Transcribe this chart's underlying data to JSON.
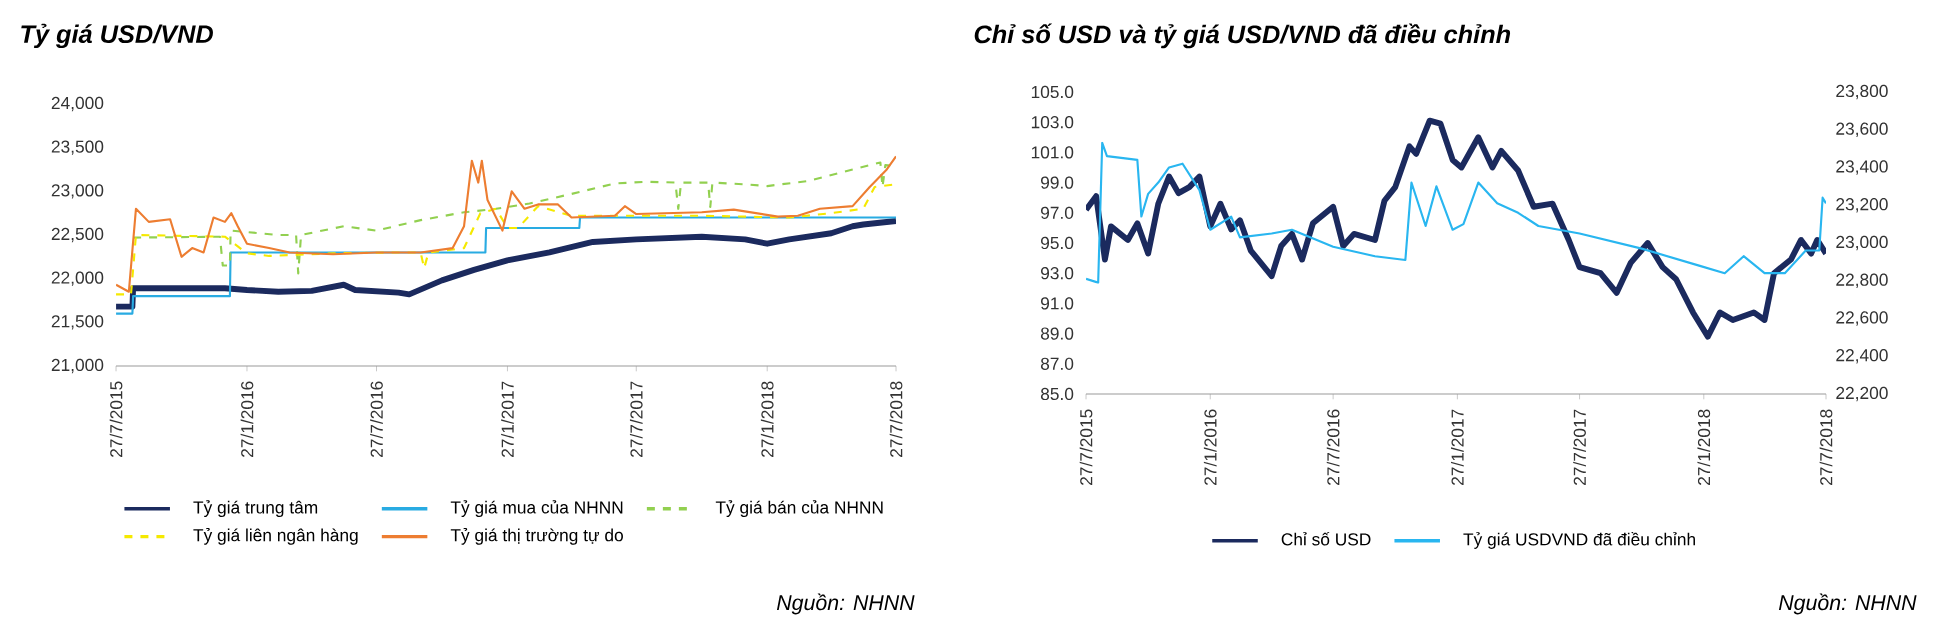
{
  "chart_data": [
    {
      "type": "line",
      "title": "Tỷ giá USD/VND",
      "xlim": [
        "2015-07-27",
        "2018-07-27"
      ],
      "xticks": [
        {
          "value": "2015-07-27",
          "label": "27/7/2015"
        },
        {
          "value": "2016-01-27",
          "label": "27/1/2016"
        },
        {
          "value": "2016-07-27",
          "label": "27/7/2016"
        },
        {
          "value": "2017-01-27",
          "label": "27/1/2017"
        },
        {
          "value": "2017-07-27",
          "label": "27/7/2017"
        },
        {
          "value": "2018-01-27",
          "label": "27/1/2018"
        },
        {
          "value": "2018-07-27",
          "label": "27/7/2018"
        }
      ],
      "ylim": [
        21000,
        24000
      ],
      "yticks": [
        {
          "value": 21000,
          "label": "21,000"
        },
        {
          "value": 21500,
          "label": "21,500"
        },
        {
          "value": 22000,
          "label": "22,000"
        },
        {
          "value": 22500,
          "label": "22,500"
        },
        {
          "value": 23000,
          "label": "23,000"
        },
        {
          "value": 23500,
          "label": "23,500"
        },
        {
          "value": 24000,
          "label": "24,000"
        }
      ],
      "legend": "bottom",
      "annotations": [
        "Nguồn: NHNN"
      ],
      "series": [
        {
          "name": "Tỷ giá trung tâm",
          "color": "#1b2a5e",
          "line_style": "solid",
          "x": [
            "2015-07-27",
            "2015-08-19",
            "2015-08-20",
            "2015-12-27",
            "2016-01-27",
            "2016-03-11",
            "2016-04-27",
            "2016-06-11",
            "2016-06-27",
            "2016-08-27",
            "2016-09-11",
            "2016-10-27",
            "2016-12-11",
            "2017-01-27",
            "2017-03-27",
            "2017-05-27",
            "2017-07-27",
            "2017-10-27",
            "2017-12-27",
            "2018-01-27",
            "2018-02-27",
            "2018-04-27",
            "2018-05-27",
            "2018-06-11",
            "2018-07-27"
          ],
          "values": [
            21680,
            21680,
            21890,
            21890,
            21870,
            21850,
            21860,
            21930,
            21870,
            21840,
            21820,
            21980,
            22100,
            22210,
            22300,
            22420,
            22450,
            22480,
            22450,
            22400,
            22450,
            22520,
            22600,
            22620,
            22660
          ]
        },
        {
          "name": "Tỷ giá mua của NHNN",
          "color": "#29abe2",
          "line_style": "solid",
          "x": [
            "2015-07-27",
            "2015-08-19",
            "2015-08-20",
            "2016-01-03",
            "2016-01-04",
            "2016-12-27",
            "2016-12-28",
            "2017-05-08",
            "2017-05-09",
            "2018-07-27"
          ],
          "values": [
            21600,
            21600,
            21800,
            21800,
            22300,
            22300,
            22580,
            22580,
            22700,
            22700
          ]
        },
        {
          "name": "Tỷ giá bán của NHNN",
          "color": "#92d050",
          "line_style": "dashed",
          "x": [
            "2015-08-20",
            "2015-12-20",
            "2015-12-24",
            "2016-01-03",
            "2016-01-04",
            "2016-03-11",
            "2016-04-05",
            "2016-04-08",
            "2016-04-12",
            "2016-06-11",
            "2016-07-27",
            "2016-09-27",
            "2016-11-27",
            "2017-01-11",
            "2017-02-27",
            "2017-04-27",
            "2017-06-27",
            "2017-08-11",
            "2017-09-20",
            "2017-09-24",
            "2017-09-28",
            "2017-11-05",
            "2017-11-08",
            "2017-11-11",
            "2017-12-27",
            "2018-01-27",
            "2018-03-27",
            "2018-05-27",
            "2018-07-05",
            "2018-07-08",
            "2018-07-12",
            "2018-07-27"
          ],
          "values": [
            22470,
            22480,
            22150,
            22150,
            22550,
            22500,
            22500,
            22060,
            22500,
            22600,
            22550,
            22670,
            22760,
            22800,
            22860,
            22970,
            23090,
            23110,
            23100,
            22800,
            23100,
            23100,
            22820,
            23100,
            23080,
            23060,
            23120,
            23250,
            23330,
            23050,
            23300,
            23290
          ]
        },
        {
          "name": "Tỷ giá liên ngân hàng",
          "color": "#f5e900",
          "line_style": "dashed",
          "x": [
            "2015-07-27",
            "2015-08-17",
            "2015-08-24",
            "2015-12-27",
            "2016-01-27",
            "2016-02-27",
            "2016-05-27",
            "2016-08-27",
            "2016-09-27",
            "2016-10-02",
            "2016-10-08",
            "2016-11-27",
            "2016-12-20",
            "2017-01-11",
            "2017-01-27",
            "2017-02-11",
            "2017-03-11",
            "2017-04-27",
            "2017-10-27",
            "2018-02-27",
            "2018-04-27",
            "2018-06-11",
            "2018-06-27",
            "2018-07-27"
          ],
          "values": [
            21820,
            21820,
            22500,
            22480,
            22290,
            22260,
            22290,
            22300,
            22300,
            22120,
            22300,
            22350,
            22750,
            22800,
            22580,
            22580,
            22830,
            22720,
            22720,
            22700,
            22750,
            22800,
            23050,
            23080
          ]
        },
        {
          "name": "Tỷ giá thị trường tự do",
          "color": "#ed7d31",
          "line_style": "solid",
          "x": [
            "2015-07-27",
            "2015-08-14",
            "2015-08-24",
            "2015-09-11",
            "2015-10-11",
            "2015-10-27",
            "2015-11-11",
            "2015-11-27",
            "2015-12-11",
            "2015-12-27",
            "2016-01-05",
            "2016-01-14",
            "2016-01-27",
            "2016-02-27",
            "2016-03-27",
            "2016-05-27",
            "2016-07-27",
            "2016-09-27",
            "2016-11-11",
            "2016-11-27",
            "2016-12-08",
            "2016-12-17",
            "2016-12-22",
            "2016-12-30",
            "2017-01-20",
            "2017-02-02",
            "2017-02-20",
            "2017-03-11",
            "2017-04-08",
            "2017-04-27",
            "2017-06-27",
            "2017-07-11",
            "2017-07-27",
            "2017-10-27",
            "2017-12-11",
            "2018-02-11",
            "2018-03-11",
            "2018-04-11",
            "2018-05-27",
            "2018-06-20",
            "2018-07-14",
            "2018-07-27"
          ],
          "values": [
            21930,
            21850,
            22800,
            22650,
            22680,
            22250,
            22350,
            22300,
            22700,
            22650,
            22750,
            22600,
            22400,
            22350,
            22300,
            22280,
            22300,
            22300,
            22350,
            22600,
            23350,
            23100,
            23350,
            22900,
            22550,
            23000,
            22800,
            22850,
            22850,
            22700,
            22720,
            22830,
            22740,
            22760,
            22790,
            22710,
            22720,
            22800,
            22830,
            23050,
            23250,
            23400
          ]
        }
      ]
    },
    {
      "type": "line",
      "title": "Chỉ số USD và tỷ giá USD/VND đã điều chỉnh",
      "xlim": [
        "2015-07-27",
        "2018-07-27"
      ],
      "xticks": [
        {
          "value": "2015-07-27",
          "label": "27/7/2015"
        },
        {
          "value": "2016-01-27",
          "label": "27/1/2016"
        },
        {
          "value": "2016-07-27",
          "label": "27/7/2016"
        },
        {
          "value": "2017-01-27",
          "label": "27/1/2017"
        },
        {
          "value": "2017-07-27",
          "label": "27/7/2017"
        },
        {
          "value": "2018-01-27",
          "label": "27/1/2018"
        },
        {
          "value": "2018-07-27",
          "label": "27/7/2018"
        }
      ],
      "ylim": [
        85,
        105
      ],
      "yticks": [
        {
          "value": 85,
          "label": "85.0"
        },
        {
          "value": 87,
          "label": "87.0"
        },
        {
          "value": 89,
          "label": "89.0"
        },
        {
          "value": 91,
          "label": "91.0"
        },
        {
          "value": 93,
          "label": "93.0"
        },
        {
          "value": 95,
          "label": "95.0"
        },
        {
          "value": 97,
          "label": "97.0"
        },
        {
          "value": 99,
          "label": "99.0"
        },
        {
          "value": 101,
          "label": "101.0"
        },
        {
          "value": 103,
          "label": "103.0"
        },
        {
          "value": 105,
          "label": "105.0"
        }
      ],
      "y2lim": [
        22200,
        23800
      ],
      "y2ticks": [
        {
          "value": 22200,
          "label": "22,200"
        },
        {
          "value": 22400,
          "label": "22,400"
        },
        {
          "value": 22600,
          "label": "22,600"
        },
        {
          "value": 22800,
          "label": "22,800"
        },
        {
          "value": 23000,
          "label": "23,000"
        },
        {
          "value": 23200,
          "label": "23,200"
        },
        {
          "value": 23400,
          "label": "23,400"
        },
        {
          "value": 23600,
          "label": "23,600"
        },
        {
          "value": 23800,
          "label": "23,800"
        }
      ],
      "legend": "bottom",
      "annotations": [
        "Nguồn: NHNN"
      ],
      "series": [
        {
          "name": "Chỉ số USD",
          "color": "#1b2a5e",
          "axis": "y",
          "x": [
            "2015-07-27",
            "2015-08-11",
            "2015-08-24",
            "2015-09-02",
            "2015-09-27",
            "2015-10-11",
            "2015-10-27",
            "2015-11-11",
            "2015-11-27",
            "2015-12-11",
            "2015-12-27",
            "2016-01-11",
            "2016-01-27",
            "2016-02-11",
            "2016-02-27",
            "2016-03-11",
            "2016-03-27",
            "2016-04-27",
            "2016-05-11",
            "2016-05-27",
            "2016-06-11",
            "2016-06-27",
            "2016-07-27",
            "2016-08-11",
            "2016-08-27",
            "2016-09-27",
            "2016-10-11",
            "2016-10-27",
            "2016-11-17",
            "2016-11-27",
            "2016-12-17",
            "2017-01-02",
            "2017-01-20",
            "2017-02-02",
            "2017-02-27",
            "2017-03-20",
            "2017-04-02",
            "2017-04-27",
            "2017-05-20",
            "2017-06-17",
            "2017-07-11",
            "2017-07-27",
            "2017-08-27",
            "2017-09-20",
            "2017-10-11",
            "2017-11-05",
            "2017-11-27",
            "2017-12-17",
            "2018-01-11",
            "2018-02-02",
            "2018-02-20",
            "2018-03-11",
            "2018-04-11",
            "2018-04-27",
            "2018-05-11",
            "2018-06-05",
            "2018-06-20",
            "2018-07-05",
            "2018-07-14",
            "2018-07-27"
          ],
          "values": [
            97.2,
            98.1,
            93.9,
            96.1,
            95.2,
            96.3,
            94.3,
            97.6,
            99.4,
            98.3,
            98.7,
            99.4,
            96.1,
            97.6,
            95.9,
            96.5,
            94.5,
            92.8,
            94.8,
            95.6,
            93.9,
            96.3,
            97.4,
            94.8,
            95.6,
            95.2,
            97.8,
            98.7,
            101.4,
            100.9,
            103.1,
            102.9,
            100.5,
            100.0,
            102.0,
            100.0,
            101.1,
            99.8,
            97.4,
            97.6,
            95.2,
            93.4,
            93.0,
            91.7,
            93.7,
            95.0,
            93.4,
            92.6,
            90.4,
            88.8,
            90.4,
            89.9,
            90.4,
            89.9,
            93.0,
            93.9,
            95.2,
            94.3,
            95.2,
            94.3
          ]
        },
        {
          "name": "Tỷ giá USDVND đã điều chỉnh",
          "color": "#29b6f0",
          "axis": "y2",
          "x": [
            "2015-07-27",
            "2015-08-14",
            "2015-08-20",
            "2015-08-27",
            "2015-10-11",
            "2015-10-17",
            "2015-10-27",
            "2015-11-11",
            "2015-11-27",
            "2015-12-17",
            "2016-01-11",
            "2016-01-27",
            "2016-02-27",
            "2016-03-11",
            "2016-04-27",
            "2016-05-27",
            "2016-07-27",
            "2016-09-27",
            "2016-11-11",
            "2016-11-20",
            "2016-12-11",
            "2016-12-27",
            "2017-01-20",
            "2017-02-05",
            "2017-02-27",
            "2017-03-27",
            "2017-04-27",
            "2017-05-27",
            "2017-07-27",
            "2017-10-27",
            "2018-01-20",
            "2018-02-27",
            "2018-03-27",
            "2018-04-27",
            "2018-05-27",
            "2018-06-27",
            "2018-07-17",
            "2018-07-22",
            "2018-07-27"
          ],
          "values": [
            22810,
            22790,
            23530,
            23460,
            23440,
            23140,
            23260,
            23320,
            23400,
            23420,
            23280,
            23070,
            23140,
            23030,
            23050,
            23070,
            22980,
            22930,
            22910,
            23320,
            23090,
            23300,
            23070,
            23100,
            23320,
            23210,
            23160,
            23090,
            23050,
            22970,
            22880,
            22840,
            22930,
            22840,
            22840,
            22960,
            22960,
            23240,
            23210
          ]
        }
      ]
    }
  ]
}
